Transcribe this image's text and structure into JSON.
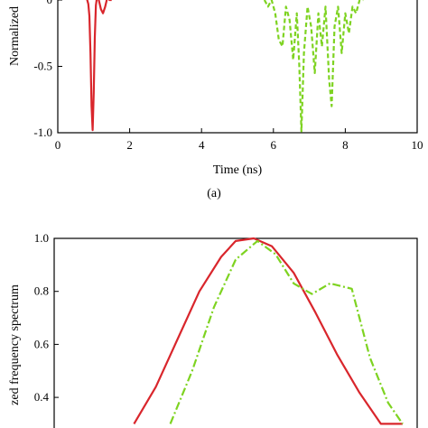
{
  "chart_data": [
    {
      "type": "line",
      "panel_label": "(a)",
      "xlabel": "Time (ns)",
      "ylabel": "Normalized",
      "xlim": [
        0,
        10
      ],
      "ylim": [
        -1.0,
        0.0
      ],
      "x_ticks": [
        "0",
        "2",
        "4",
        "6",
        "8",
        "10"
      ],
      "y_ticks": [
        "0",
        "-0.5",
        "-1.0"
      ],
      "series": [
        {
          "color": "#d9262c",
          "style": "solid",
          "x": [
            0.8,
            0.85,
            0.88,
            0.91,
            0.94,
            0.97,
            1.0,
            1.03,
            1.06,
            1.1,
            1.14,
            1.2,
            1.26,
            1.32,
            1.38,
            1.44,
            1.5
          ],
          "y": [
            0.02,
            -0.03,
            -0.12,
            -0.4,
            -0.8,
            -0.98,
            -0.7,
            -0.28,
            -0.04,
            0.04,
            0.0,
            -0.07,
            -0.1,
            -0.05,
            0.02,
            0.0,
            0.0
          ]
        },
        {
          "color": "#7ed321",
          "style": "dashed",
          "x": [
            5.75,
            5.85,
            5.95,
            6.05,
            6.15,
            6.25,
            6.35,
            6.45,
            6.55,
            6.65,
            6.72,
            6.78,
            6.85,
            6.95,
            7.05,
            7.15,
            7.25,
            7.35,
            7.45,
            7.55,
            7.62,
            7.7,
            7.8,
            7.9,
            8.0,
            8.1,
            8.2,
            8.3,
            8.4,
            8.5
          ],
          "y": [
            0.0,
            -0.05,
            0.0,
            -0.1,
            -0.3,
            -0.35,
            -0.05,
            -0.15,
            -0.45,
            -0.1,
            -0.5,
            -0.99,
            -0.4,
            -0.05,
            -0.2,
            -0.55,
            -0.1,
            -0.35,
            -0.05,
            -0.6,
            -0.8,
            -0.2,
            -0.05,
            -0.4,
            -0.1,
            -0.25,
            -0.05,
            -0.1,
            0.0,
            0.0
          ]
        }
      ]
    },
    {
      "type": "line",
      "xlabel": "",
      "ylabel": "zed frequency spectrum",
      "ylim": [
        0.3,
        1.0
      ],
      "y_ticks": [
        "1.0",
        "0.8",
        "0.6",
        "0.4"
      ],
      "x_range_relative": [
        0,
        1
      ],
      "series": [
        {
          "color": "#d9262c",
          "style": "solid",
          "x": [
            0.22,
            0.28,
            0.34,
            0.4,
            0.46,
            0.5,
            0.55,
            0.6,
            0.66,
            0.72,
            0.78,
            0.84,
            0.9,
            0.96
          ],
          "y": [
            0.3,
            0.44,
            0.62,
            0.8,
            0.93,
            0.99,
            1.0,
            0.97,
            0.87,
            0.72,
            0.56,
            0.42,
            0.3,
            0.3
          ]
        },
        {
          "color": "#7ed321",
          "style": "dashdot",
          "x": [
            0.32,
            0.38,
            0.44,
            0.5,
            0.56,
            0.61,
            0.66,
            0.71,
            0.76,
            0.82,
            0.87,
            0.92,
            0.96
          ],
          "y": [
            0.3,
            0.5,
            0.74,
            0.92,
            0.99,
            0.94,
            0.83,
            0.79,
            0.83,
            0.81,
            0.55,
            0.38,
            0.3
          ]
        }
      ]
    }
  ]
}
